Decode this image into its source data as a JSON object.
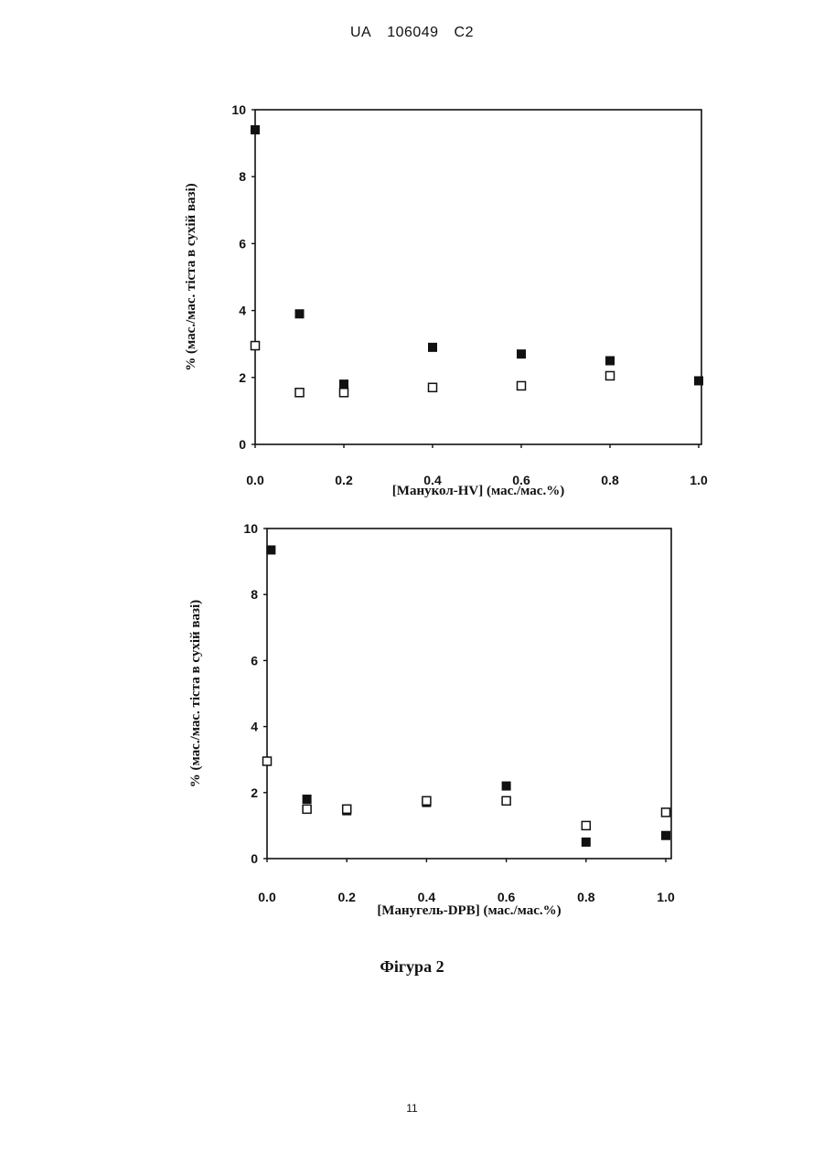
{
  "header": {
    "country": "UA",
    "number": "106049",
    "kind": "C2"
  },
  "caption": "Фігура 2",
  "page_number": "11",
  "chart_data": [
    {
      "type": "scatter",
      "title": "",
      "xlabel": "[Манукол-HV] (мас./мас.%)",
      "ylabel": "% (мас./мас. тіста в сухій вазі)",
      "xlim": [
        0,
        1
      ],
      "ylim": [
        0,
        10
      ],
      "xticks": [
        "0.0",
        "0.2",
        "0.4",
        "0.6",
        "0.8",
        "1.0"
      ],
      "yticks": [
        "0",
        "2",
        "4",
        "6",
        "8",
        "10"
      ],
      "series": [
        {
          "marker": "filled-square",
          "color": "#111111",
          "points": [
            [
              0.0,
              9.4
            ],
            [
              0.1,
              3.9
            ],
            [
              0.2,
              1.8
            ],
            [
              0.4,
              2.9
            ],
            [
              0.6,
              2.7
            ],
            [
              0.8,
              2.5
            ],
            [
              1.0,
              1.9
            ]
          ]
        },
        {
          "marker": "open-square",
          "color": "#111111",
          "points": [
            [
              0.0,
              2.95
            ],
            [
              0.1,
              1.55
            ],
            [
              0.2,
              1.55
            ],
            [
              0.4,
              1.7
            ],
            [
              0.6,
              1.75
            ],
            [
              0.8,
              2.05
            ]
          ]
        }
      ]
    },
    {
      "type": "scatter",
      "title": "",
      "xlabel": "[Манугель-DPB] (мас./мас.%)",
      "ylabel": "% (мас./мас. тіста в сухій вазі)",
      "xlim": [
        0,
        1
      ],
      "ylim": [
        0,
        10
      ],
      "xticks": [
        "0.0",
        "0.2",
        "0.4",
        "0.6",
        "0.8",
        "1.0"
      ],
      "yticks": [
        "0",
        "2",
        "4",
        "6",
        "8",
        "10"
      ],
      "series": [
        {
          "marker": "filled-square",
          "color": "#111111",
          "points": [
            [
              0.01,
              9.35
            ],
            [
              0.1,
              1.8
            ],
            [
              0.2,
              1.45
            ],
            [
              0.4,
              1.7
            ],
            [
              0.6,
              2.2
            ],
            [
              0.8,
              0.5
            ],
            [
              1.0,
              0.7
            ]
          ]
        },
        {
          "marker": "open-square",
          "color": "#111111",
          "points": [
            [
              0.0,
              2.95
            ],
            [
              0.1,
              1.5
            ],
            [
              0.2,
              1.5
            ],
            [
              0.4,
              1.75
            ],
            [
              0.6,
              1.75
            ],
            [
              0.8,
              1.0
            ],
            [
              1.0,
              1.4
            ]
          ]
        }
      ]
    }
  ]
}
